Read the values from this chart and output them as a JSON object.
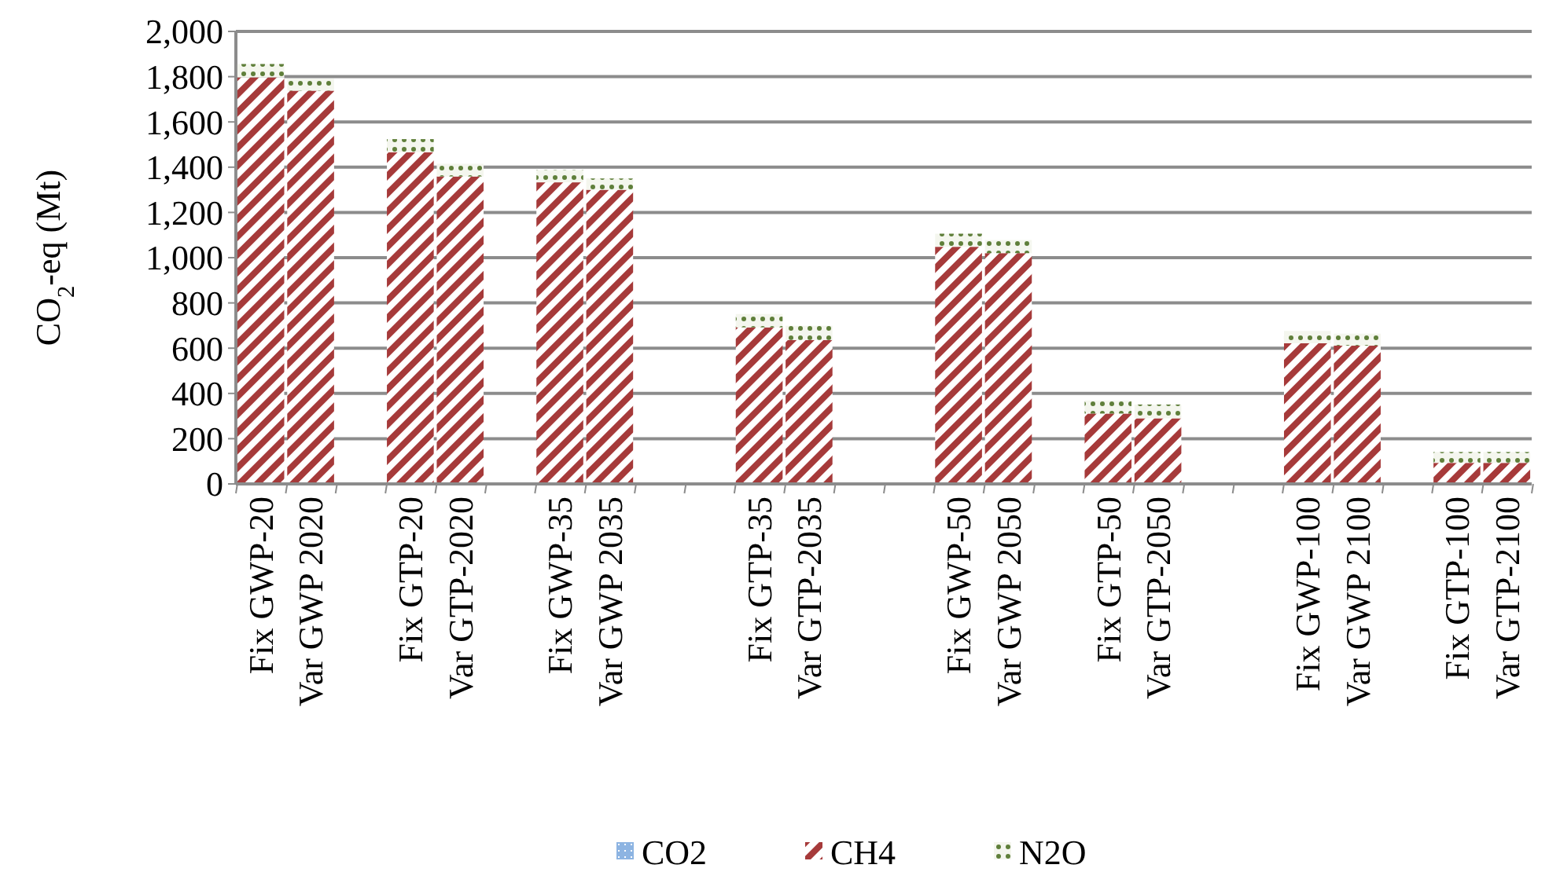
{
  "chart_data": {
    "type": "bar",
    "stacked": true,
    "ylabel": "CO$_{2}$-eq (Mt)",
    "categories": [
      "Fix GWP-20",
      "Var GWP 2020",
      null,
      "Fix GTP-20",
      "Var GTP-2020",
      null,
      "Fix GWP-35",
      "Var GWP 2035",
      null,
      null,
      "Fix GTP-35",
      "Var GTP-2035",
      null,
      null,
      "Fix GWP-50",
      "Var GWP 2050",
      null,
      "Fix GTP-50",
      "Var GTP-2050",
      null,
      null,
      "Fix GWP-100",
      "Var GWP 2100",
      null,
      "Fix GTP-100",
      "Var GTP-2100"
    ],
    "series": [
      {
        "name": "CO2",
        "color": "#8db4e2",
        "values": [
          0,
          0,
          null,
          0,
          0,
          null,
          0,
          0,
          null,
          null,
          0,
          0,
          null,
          null,
          0,
          0,
          null,
          0,
          0,
          null,
          null,
          0,
          0,
          null,
          0,
          0
        ]
      },
      {
        "name": "CH4",
        "color": "#a63a3a",
        "values": [
          1797,
          1738,
          null,
          1466,
          1359,
          null,
          1333,
          1300,
          null,
          null,
          692,
          636,
          null,
          null,
          1048,
          1020,
          null,
          311,
          290,
          null,
          null,
          622,
          611,
          null,
          93,
          93
        ]
      },
      {
        "name": "N2O",
        "color": "#5f7f3a",
        "values": [
          59,
          53,
          null,
          58,
          56,
          null,
          54,
          50,
          null,
          null,
          59,
          63,
          null,
          null,
          58,
          58,
          null,
          58,
          61,
          null,
          null,
          54,
          53,
          null,
          48,
          48
        ]
      }
    ],
    "ylim": [
      0,
      2000
    ],
    "yticks": [
      0,
      200,
      400,
      600,
      800,
      {
        "value": 1000,
        "label": "1,000"
      },
      {
        "value": 1200,
        "label": "1,200"
      },
      {
        "value": 1400,
        "label": "1,400"
      },
      {
        "value": 1600,
        "label": "1,600"
      },
      {
        "value": 1800,
        "label": "1,800"
      },
      {
        "value": 2000,
        "label": "2,000"
      }
    ],
    "grid": "y",
    "legend": "bottom"
  }
}
